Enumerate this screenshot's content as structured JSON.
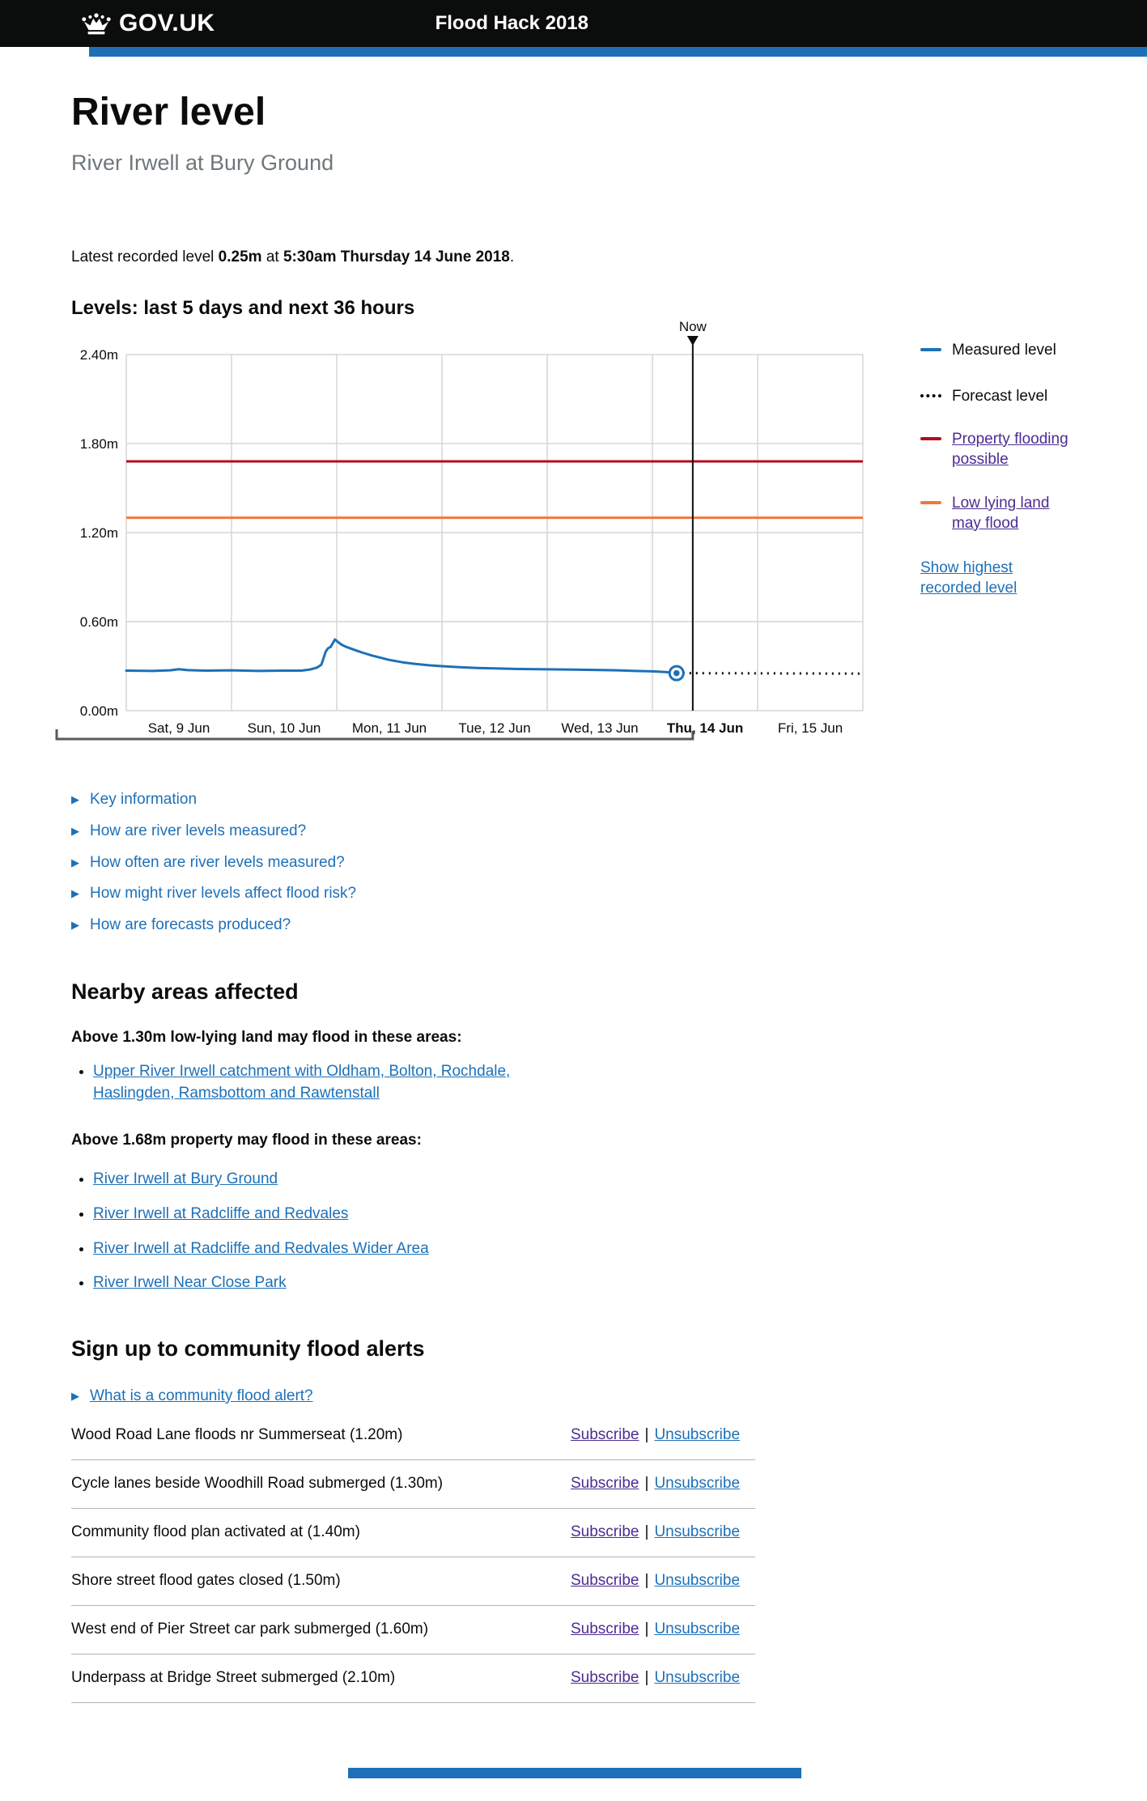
{
  "header": {
    "logo_text": "GOV.UK",
    "service_name": "Flood Hack 2018"
  },
  "page": {
    "title": "River level",
    "subtitle": "River Irwell at Bury Ground"
  },
  "latest": {
    "prefix": "Latest recorded level",
    "level": "0.25m",
    "connector": "at",
    "datetime": "5:30am Thursday 14 June 2018",
    "suffix": "."
  },
  "chart": {
    "heading": "Levels: last 5 days and next 36 hours",
    "now_label": "Now",
    "legend": {
      "measured": "Measured level",
      "forecast": "Forecast level",
      "property": "Property flooding possible",
      "low_lying": "Low lying land may flood",
      "show_highest": "Show highest recorded level"
    }
  },
  "chart_data": {
    "type": "line",
    "title": "Levels: last 5 days and next 36 hours",
    "x_axis": {
      "unit": "hours since Sat 9 Jun 2018 00:00",
      "range": [
        0,
        168
      ],
      "day_gridlines": [
        24,
        48,
        72,
        96,
        120,
        144
      ],
      "labels": [
        {
          "t": 12,
          "text": "Sat, 9 Jun",
          "bold": false
        },
        {
          "t": 36,
          "text": "Sun, 10 Jun",
          "bold": false
        },
        {
          "t": 60,
          "text": "Mon, 11 Jun",
          "bold": false
        },
        {
          "t": 84,
          "text": "Tue, 12 Jun",
          "bold": false
        },
        {
          "t": 108,
          "text": "Wed, 13 Jun",
          "bold": false
        },
        {
          "t": 132,
          "text": "Thu, 14 Jun",
          "bold": true
        },
        {
          "t": 156,
          "text": "Fri, 15 Jun",
          "bold": false
        }
      ]
    },
    "y_axis": {
      "unit": "m",
      "range": [
        0,
        2.4
      ],
      "ticks": [
        {
          "v": 0,
          "text": "0.00m"
        },
        {
          "v": 0.6,
          "text": "0.60m"
        },
        {
          "v": 1.2,
          "text": "1.20m"
        },
        {
          "v": 1.8,
          "text": "1.80m"
        },
        {
          "v": 2.4,
          "text": "2.40m"
        }
      ]
    },
    "now": {
      "t": 129.2,
      "label": "Now"
    },
    "latest_point": {
      "t": 125.5,
      "value": 0.25
    },
    "thresholds": [
      {
        "value": 1.68,
        "name": "Property flooding possible",
        "color": "#b10e1e"
      },
      {
        "value": 1.3,
        "name": "Low lying land may flood",
        "color": "#f47738"
      }
    ],
    "series": [
      {
        "name": "Measured level",
        "style": "solid",
        "color": "#1d70b8",
        "points": [
          [
            0,
            0.27
          ],
          [
            6,
            0.268
          ],
          [
            10,
            0.272
          ],
          [
            12,
            0.28
          ],
          [
            14,
            0.273
          ],
          [
            18,
            0.27
          ],
          [
            24,
            0.272
          ],
          [
            30,
            0.268
          ],
          [
            36,
            0.27
          ],
          [
            40,
            0.27
          ],
          [
            42,
            0.278
          ],
          [
            43.5,
            0.29
          ],
          [
            44.5,
            0.31
          ],
          [
            45.5,
            0.4
          ],
          [
            46,
            0.42
          ],
          [
            46.6,
            0.43
          ],
          [
            47,
            0.45
          ],
          [
            47.6,
            0.48
          ],
          [
            48.2,
            0.465
          ],
          [
            49,
            0.447
          ],
          [
            50,
            0.432
          ],
          [
            52,
            0.41
          ],
          [
            54,
            0.39
          ],
          [
            56,
            0.372
          ],
          [
            58,
            0.357
          ],
          [
            60,
            0.342
          ],
          [
            63,
            0.326
          ],
          [
            66,
            0.315
          ],
          [
            69,
            0.306
          ],
          [
            72,
            0.3
          ],
          [
            76,
            0.293
          ],
          [
            80,
            0.288
          ],
          [
            84,
            0.285
          ],
          [
            90,
            0.281
          ],
          [
            96,
            0.279
          ],
          [
            102,
            0.277
          ],
          [
            108,
            0.274
          ],
          [
            112,
            0.272
          ],
          [
            116,
            0.268
          ],
          [
            120,
            0.265
          ],
          [
            123,
            0.26
          ],
          [
            125.5,
            0.253
          ]
        ]
      },
      {
        "name": "Forecast level",
        "style": "dotted",
        "color": "#0b0c0c",
        "points": [
          [
            125.5,
            0.253
          ],
          [
            168,
            0.25
          ]
        ]
      }
    ],
    "legend_position": "right",
    "grid": true
  },
  "details_links": {
    "items": [
      "Key information",
      "How are river levels measured?",
      "How often are river levels measured?",
      "How might river levels affect flood risk?",
      "How are forecasts produced?"
    ]
  },
  "nearby": {
    "heading": "Nearby areas affected",
    "low_lying": {
      "intro": "Above 1.30m low-lying land may flood in these areas:",
      "links": [
        "Upper River Irwell catchment with Oldham, Bolton, Rochdale, Haslingden, Ramsbottom and Rawtenstall"
      ]
    },
    "property": {
      "intro": "Above 1.68m property may flood in these areas:",
      "links": [
        "River Irwell at Bury Ground",
        "River Irwell at Radcliffe and Redvales",
        "River Irwell at Radcliffe and Redvales Wider Area",
        "River Irwell Near Close Park"
      ]
    }
  },
  "alerts": {
    "heading": "Sign up to community flood alerts",
    "what_is": "What is a community flood alert?",
    "subscribe_label": "Subscribe",
    "unsubscribe_label": "Unsubscribe",
    "separator": "|",
    "rows": [
      "Wood Road Lane floods nr Summerseat (1.20m)",
      "Cycle lanes beside Woodhill Road submerged (1.30m)",
      "Community flood plan activated at (1.40m)",
      "Shore street flood gates closed (1.50m)",
      "West end of Pier Street car park submerged (1.60m)",
      "Underpass at Bridge Street submerged (2.10m)"
    ]
  },
  "colors": {
    "brand_black": "#0b0c0c",
    "brand_blue": "#1d70b8",
    "link_blue": "#1d70b8",
    "visited_purple": "#4c2c92",
    "threshold_red": "#b10e1e",
    "threshold_orange": "#f47738",
    "grid_gray": "#d5d5d5",
    "border_gray": "#b1b4b6",
    "secondary_text": "#6f777b"
  }
}
